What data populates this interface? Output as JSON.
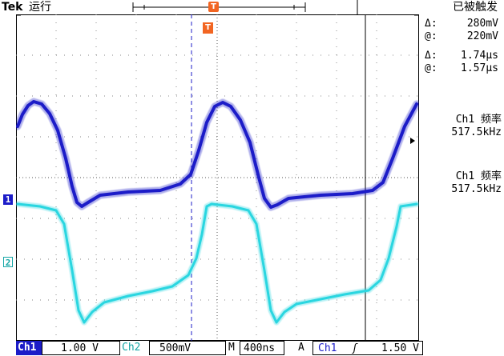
{
  "header": {
    "brand": "Tek",
    "run_status": "运行",
    "trigger_status": "已被触发",
    "trigger_marker": "T"
  },
  "cursors": {
    "amplitude_delta_label": "Δ:",
    "amplitude_delta": "280mV",
    "amplitude_at_label": "@:",
    "amplitude_at": "220mV",
    "time_delta_label": "Δ:",
    "time_delta": "1.74µs",
    "time_at_label": "@:",
    "time_at": "1.57µs"
  },
  "measurements": [
    {
      "label": "Ch1 频率",
      "value": "517.5kHz"
    },
    {
      "label": "Ch1 频率",
      "value": "517.5kHz"
    }
  ],
  "markers": {
    "ch1": "1",
    "ch2": "2",
    "plot_trigger": "T"
  },
  "status_bar": {
    "ch1_label": "Ch1",
    "ch1_scale": "1.00 V",
    "ch2_label": "Ch2",
    "ch2_scale": "500mV",
    "timebase_label": "M",
    "timebase": "400ns",
    "trigger_mode": "A",
    "trigger_source": "Ch1",
    "trigger_slope": "ʃ",
    "trigger_level": "1.50 V"
  },
  "colors": {
    "ch1": "#1c1cc8",
    "ch2": "#2ad6e0",
    "trigger": "#f26522"
  }
}
